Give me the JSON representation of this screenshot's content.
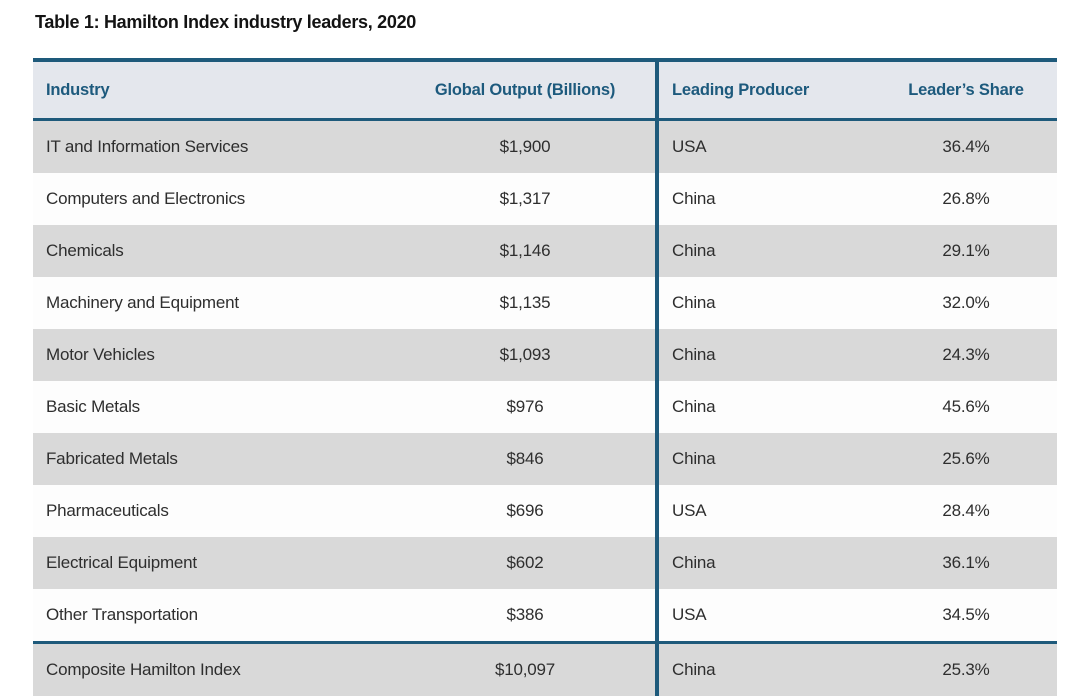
{
  "title": "Table 1: Hamilton Index industry leaders, 2020",
  "table": {
    "columns": [
      "Industry",
      "Global Output (Billions)",
      "Leading Producer",
      "Leader’s Share"
    ],
    "rows": [
      {
        "industry": "IT and Information Services",
        "output": "$1,900",
        "producer": "USA",
        "share": "36.4%"
      },
      {
        "industry": "Computers and Electronics",
        "output": "$1,317",
        "producer": "China",
        "share": "26.8%"
      },
      {
        "industry": "Chemicals",
        "output": "$1,146",
        "producer": "China",
        "share": "29.1%"
      },
      {
        "industry": "Machinery and Equipment",
        "output": "$1,135",
        "producer": "China",
        "share": "32.0%"
      },
      {
        "industry": "Motor Vehicles",
        "output": "$1,093",
        "producer": "China",
        "share": "24.3%"
      },
      {
        "industry": "Basic Metals",
        "output": "$976",
        "producer": "China",
        "share": "45.6%"
      },
      {
        "industry": "Fabricated Metals",
        "output": "$846",
        "producer": "China",
        "share": "25.6%"
      },
      {
        "industry": "Pharmaceuticals",
        "output": "$696",
        "producer": "USA",
        "share": "28.4%"
      },
      {
        "industry": "Electrical Equipment",
        "output": "$602",
        "producer": "China",
        "share": "36.1%"
      },
      {
        "industry": "Other Transportation",
        "output": "$386",
        "producer": "USA",
        "share": "34.5%"
      }
    ],
    "composite_row": {
      "industry": "Composite Hamilton Index",
      "output": "$10,097",
      "producer": "China",
      "share": "25.3%"
    },
    "colors": {
      "accent_teal": "#1e5a7b",
      "header_background": "#e4e7ed",
      "header_text": "#1d5a7d",
      "stripe_gray": "#d9d9d9",
      "stripe_white": "#fdfdfd",
      "body_text": "#2e2e2e"
    }
  }
}
